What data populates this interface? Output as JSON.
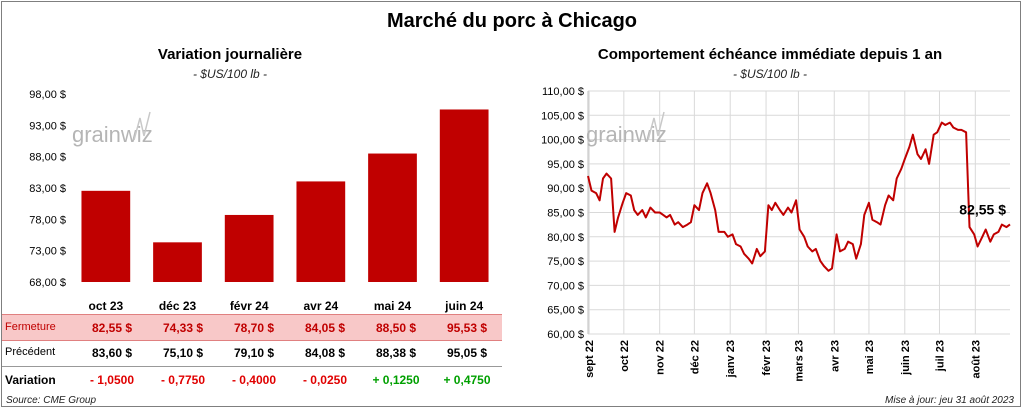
{
  "title": "Marché du porc à Chicago",
  "left_panel": {
    "title": "Variation  journalière",
    "subtitle": "- $US/100 lb -"
  },
  "right_panel": {
    "title": "Comportement  échéance immédiate depuis 1 an",
    "subtitle": "- $US/100 lb -"
  },
  "watermark": "grainwiz",
  "table": {
    "months": [
      "oct 23",
      "déc 23",
      "févr 24",
      "avr 24",
      "mai 24",
      "juin 24"
    ],
    "fermeture": {
      "label": "Fermeture",
      "values": [
        "82,55  $",
        "74,33  $",
        "78,70  $",
        "84,05  $",
        "88,50  $",
        "95,53  $"
      ]
    },
    "precedent": {
      "label": "Précédent",
      "values": [
        "83,60  $",
        "75,10  $",
        "79,10  $",
        "84,08  $",
        "88,38  $",
        "95,05  $"
      ]
    },
    "variation": {
      "label": "Variation",
      "values": [
        "- 1,0500",
        "- 0,7750",
        "- 0,4000",
        "- 0,0250",
        "+ 0,1250",
        "+ 0,4750"
      ]
    }
  },
  "colors": {
    "bar": "#c00000",
    "line": "#c00000",
    "fermeture_bg": "#f8c8c8",
    "negative": "#e00000",
    "positive": "#00a000"
  },
  "footer": {
    "source": "Source: CME Group",
    "updated": "Mise à jour: jeu 31 août 2023"
  },
  "chart_data": [
    {
      "type": "bar",
      "categories": [
        "oct 23",
        "déc 23",
        "févr 24",
        "avr 24",
        "mai 24",
        "juin 24"
      ],
      "values": [
        82.55,
        74.33,
        78.7,
        84.05,
        88.5,
        95.53
      ],
      "ylim": [
        68,
        98
      ],
      "yticks": [
        68,
        73,
        78,
        83,
        88,
        93,
        98
      ],
      "ytick_labels": [
        "68,00 $",
        "73,00 $",
        "78,00 $",
        "83,00 $",
        "88,00 $",
        "93,00 $",
        "98,00 $"
      ],
      "grid": false
    },
    {
      "type": "line",
      "ylim": [
        60,
        110
      ],
      "yticks": [
        60,
        65,
        70,
        75,
        80,
        85,
        90,
        95,
        100,
        105,
        110
      ],
      "ytick_labels": [
        "60,00 $",
        "65,00 $",
        "70,00 $",
        "75,00 $",
        "80,00 $",
        "85,00 $",
        "90,00 $",
        "95,00 $",
        "100,00 $",
        "105,00 $",
        "110,00 $"
      ],
      "xtick_labels": [
        "sept 22",
        "oct 22",
        "nov 22",
        "déc 22",
        "janv 23",
        "févr 23",
        "mars 23",
        "avr 23",
        "mai 23",
        "juin 23",
        "juil 23",
        "août 23"
      ],
      "grid": true,
      "last_label": "82,55 $",
      "x": [
        "2022-08-31",
        "2022-09-03",
        "2022-09-07",
        "2022-09-10",
        "2022-09-13",
        "2022-09-16",
        "2022-09-20",
        "2022-09-23",
        "2022-09-26",
        "2022-09-30",
        "2022-10-03",
        "2022-10-07",
        "2022-10-10",
        "2022-10-13",
        "2022-10-17",
        "2022-10-20",
        "2022-10-24",
        "2022-10-28",
        "2022-11-01",
        "2022-11-04",
        "2022-11-07",
        "2022-11-10",
        "2022-11-14",
        "2022-11-17",
        "2022-11-21",
        "2022-11-25",
        "2022-11-28",
        "2022-12-01",
        "2022-12-05",
        "2022-12-08",
        "2022-12-12",
        "2022-12-15",
        "2022-12-19",
        "2022-12-22",
        "2022-12-27",
        "2022-12-30",
        "2023-01-03",
        "2023-01-06",
        "2023-01-10",
        "2023-01-13",
        "2023-01-17",
        "2023-01-20",
        "2023-01-24",
        "2023-01-27",
        "2023-01-31",
        "2023-02-03",
        "2023-02-06",
        "2023-02-09",
        "2023-02-13",
        "2023-02-16",
        "2023-02-20",
        "2023-02-23",
        "2023-02-27",
        "2023-03-02",
        "2023-03-06",
        "2023-03-09",
        "2023-03-13",
        "2023-03-16",
        "2023-03-20",
        "2023-03-23",
        "2023-03-27",
        "2023-03-30",
        "2023-04-03",
        "2023-04-06",
        "2023-04-10",
        "2023-04-13",
        "2023-04-17",
        "2023-04-20",
        "2023-04-24",
        "2023-04-27",
        "2023-05-01",
        "2023-05-04",
        "2023-05-08",
        "2023-05-11",
        "2023-05-15",
        "2023-05-18",
        "2023-05-22",
        "2023-05-25",
        "2023-05-29",
        "2023-06-01",
        "2023-06-05",
        "2023-06-08",
        "2023-06-12",
        "2023-06-15",
        "2023-06-19",
        "2023-06-22",
        "2023-06-26",
        "2023-06-29",
        "2023-07-03",
        "2023-07-06",
        "2023-07-10",
        "2023-07-13",
        "2023-07-17",
        "2023-07-20",
        "2023-07-24",
        "2023-07-27",
        "2023-07-31",
        "2023-08-03",
        "2023-08-07",
        "2023-08-10",
        "2023-08-14",
        "2023-08-17",
        "2023-08-21",
        "2023-08-24",
        "2023-08-28",
        "2023-08-31"
      ],
      "y": [
        92.5,
        89.5,
        89.0,
        87.5,
        92.0,
        93.0,
        92.0,
        81.0,
        84.0,
        87.0,
        89.0,
        88.5,
        85.5,
        84.5,
        85.5,
        84.0,
        86.0,
        85.0,
        85.0,
        84.5,
        84.0,
        84.5,
        82.5,
        83.0,
        82.0,
        82.5,
        83.0,
        86.5,
        85.5,
        89.0,
        91.0,
        89.0,
        85.5,
        81.0,
        81.0,
        80.0,
        80.5,
        78.5,
        78.0,
        76.5,
        75.5,
        74.5,
        77.5,
        76.0,
        77.0,
        86.5,
        85.5,
        87.0,
        85.5,
        84.5,
        86.0,
        85.0,
        87.5,
        81.5,
        80.0,
        78.0,
        77.0,
        77.5,
        75.0,
        74.0,
        73.0,
        73.5,
        80.5,
        77.0,
        77.5,
        79.0,
        78.5,
        75.5,
        78.5,
        84.5,
        87.0,
        83.5,
        83.0,
        82.5,
        86.5,
        88.5,
        87.5,
        92.0,
        94.0,
        96.0,
        98.5,
        101.0,
        97.0,
        96.0,
        98.0,
        95.0,
        101.0,
        101.5,
        103.5,
        103.0,
        103.5,
        102.5,
        102.0,
        102.0,
        101.5,
        82.0,
        80.5,
        78.0,
        80.0,
        81.5,
        79.0,
        80.5,
        81.0,
        82.5,
        82.0,
        82.55
      ]
    }
  ]
}
